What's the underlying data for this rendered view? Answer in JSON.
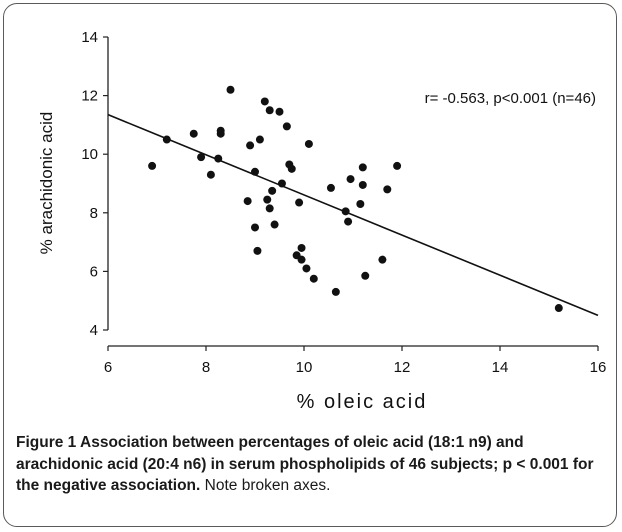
{
  "chart_data": {
    "type": "scatter",
    "xlabel": "% oleic acid",
    "ylabel": "% arachidonic acid",
    "xlim": [
      6,
      16
    ],
    "ylim": [
      4,
      14
    ],
    "xticks": [
      6,
      8,
      10,
      12,
      14,
      16
    ],
    "yticks": [
      4,
      6,
      8,
      10,
      12,
      14
    ],
    "annotation": "r= -0.563, p<0.001 (n=46)",
    "regression_line": {
      "x": [
        6,
        16
      ],
      "y": [
        11.35,
        4.5
      ]
    },
    "points": [
      {
        "x": 6.9,
        "y": 9.6
      },
      {
        "x": 7.2,
        "y": 10.5
      },
      {
        "x": 7.75,
        "y": 10.7
      },
      {
        "x": 7.9,
        "y": 9.9
      },
      {
        "x": 8.1,
        "y": 9.3
      },
      {
        "x": 8.25,
        "y": 9.85
      },
      {
        "x": 8.3,
        "y": 10.7
      },
      {
        "x": 8.3,
        "y": 10.8
      },
      {
        "x": 8.5,
        "y": 12.2
      },
      {
        "x": 8.85,
        "y": 8.4
      },
      {
        "x": 8.9,
        "y": 10.3
      },
      {
        "x": 9.0,
        "y": 7.5
      },
      {
        "x": 9.0,
        "y": 9.4
      },
      {
        "x": 9.05,
        "y": 6.7
      },
      {
        "x": 9.1,
        "y": 10.5
      },
      {
        "x": 9.2,
        "y": 11.8
      },
      {
        "x": 9.25,
        "y": 8.45
      },
      {
        "x": 9.3,
        "y": 11.5
      },
      {
        "x": 9.3,
        "y": 8.15
      },
      {
        "x": 9.35,
        "y": 8.75
      },
      {
        "x": 9.4,
        "y": 7.6
      },
      {
        "x": 9.5,
        "y": 11.45
      },
      {
        "x": 9.55,
        "y": 9.0
      },
      {
        "x": 9.65,
        "y": 10.95
      },
      {
        "x": 9.7,
        "y": 9.65
      },
      {
        "x": 9.75,
        "y": 9.5
      },
      {
        "x": 9.85,
        "y": 6.55
      },
      {
        "x": 9.9,
        "y": 8.35
      },
      {
        "x": 9.95,
        "y": 6.4
      },
      {
        "x": 9.95,
        "y": 6.8
      },
      {
        "x": 10.05,
        "y": 6.1
      },
      {
        "x": 10.1,
        "y": 10.35
      },
      {
        "x": 10.2,
        "y": 5.75
      },
      {
        "x": 10.55,
        "y": 8.85
      },
      {
        "x": 10.65,
        "y": 5.3
      },
      {
        "x": 10.85,
        "y": 8.05
      },
      {
        "x": 10.9,
        "y": 7.7
      },
      {
        "x": 10.95,
        "y": 9.15
      },
      {
        "x": 11.15,
        "y": 8.3
      },
      {
        "x": 11.2,
        "y": 9.55
      },
      {
        "x": 11.2,
        "y": 8.95
      },
      {
        "x": 11.25,
        "y": 5.85
      },
      {
        "x": 11.6,
        "y": 6.4
      },
      {
        "x": 11.7,
        "y": 8.8
      },
      {
        "x": 11.9,
        "y": 9.6
      },
      {
        "x": 15.2,
        "y": 4.75
      }
    ]
  },
  "caption": {
    "bold": "Figure 1 Association between percentages of oleic acid (18:1 n9) and arachidonic acid (20:4 n6) in serum phospholipids of 46 subjects; p < 0.001 for the negative association.",
    "normal": " Note broken axes."
  }
}
